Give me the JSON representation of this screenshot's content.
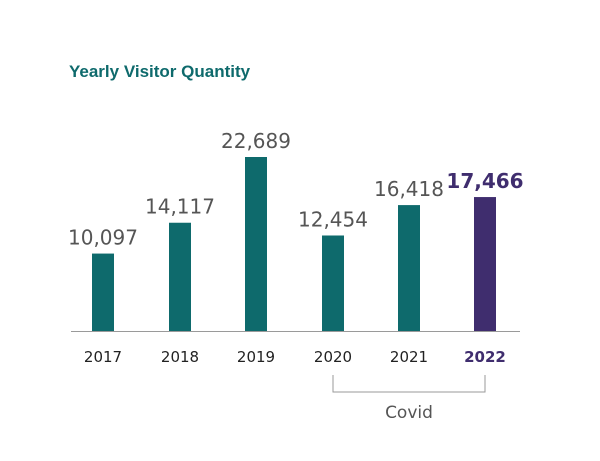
{
  "chart_data": {
    "type": "bar",
    "title": "Yearly Visitor Quantity",
    "categories": [
      "2017",
      "2018",
      "2019",
      "2020",
      "2021",
      "2022"
    ],
    "values": [
      10097,
      14117,
      22689,
      12454,
      16418,
      17466
    ],
    "value_labels": [
      "10,097",
      "14,117",
      "22,689",
      "12,454",
      "16,418",
      "17,466"
    ],
    "ylim": [
      0,
      23000
    ],
    "grid": false,
    "highlight_index": 5,
    "colors": {
      "bar": "#0e6a6c",
      "highlight": "#3f2d6e",
      "axis": "#9a9a9a"
    },
    "annotations": [
      {
        "text": "Covid",
        "from": "2020",
        "to": "2022"
      }
    ]
  }
}
